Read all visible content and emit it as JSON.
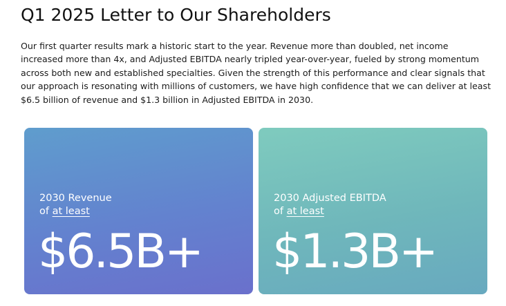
{
  "page": {
    "title": "Q1 2025 Letter to Our Shareholders",
    "intro": "Our first quarter results mark a historic start to the year. Revenue more than doubled, net income increased more than 4x, and Adjusted EBITDA nearly tripled year-over-year, fueled by strong momentum across both new and established specialties. Given the strength of this performance and clear signals that our approach is resonating with millions of customers, we have high confidence that we can deliver at least $6.5 billion of revenue and $1.3 billion in Adjusted EBITDA in 2030."
  },
  "cards": [
    {
      "label_line1": "2030 Revenue",
      "label_prefix": "of ",
      "label_emphasis": "at least",
      "value": "$6.5B+",
      "gradient": [
        "#5f9dcd",
        "#6a70cc"
      ]
    },
    {
      "label_line1": "2030 Adjusted EBITDA",
      "label_prefix": "of ",
      "label_emphasis": "at least",
      "value": "$1.3B+",
      "gradient": [
        "#7fcbbe",
        "#68a9bf"
      ]
    }
  ]
}
